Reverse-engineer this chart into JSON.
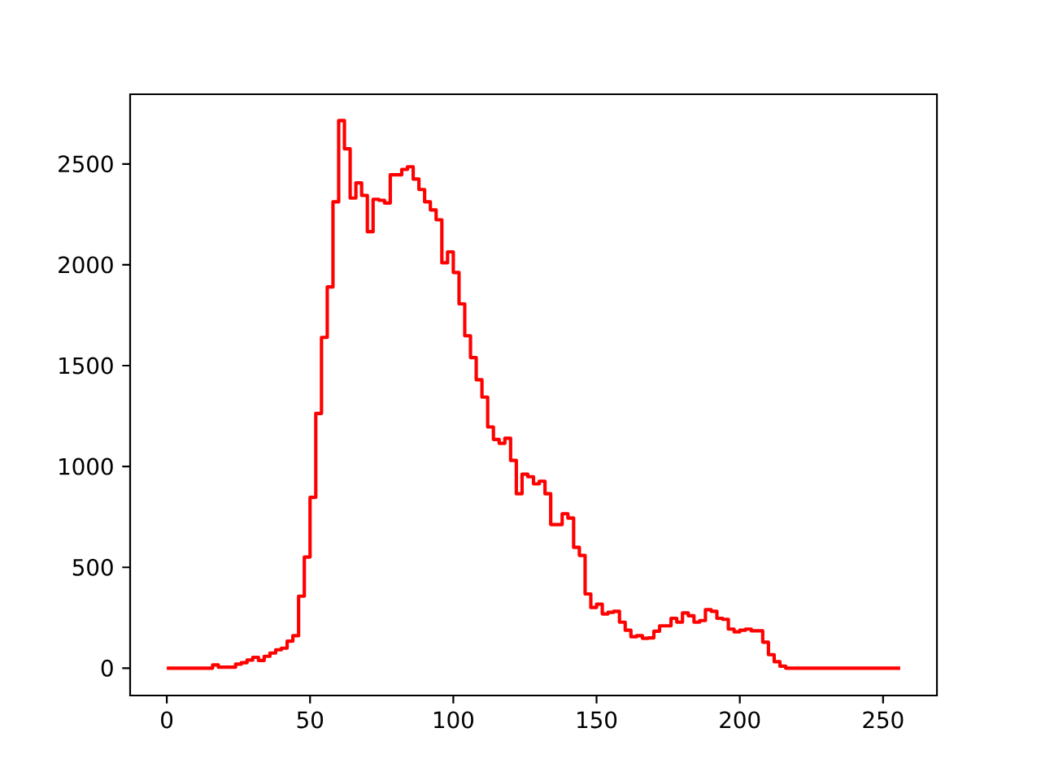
{
  "chart_data": {
    "type": "histogram",
    "color": "#ff0000",
    "bins": [
      0,
      2,
      4,
      6,
      8,
      10,
      12,
      14,
      16,
      18,
      20,
      22,
      24,
      26,
      28,
      30,
      32,
      34,
      36,
      38,
      40,
      42,
      44,
      46,
      48,
      50,
      52,
      54,
      56,
      58,
      60,
      62,
      64,
      66,
      68,
      70,
      72,
      74,
      76,
      78,
      80,
      82,
      84,
      86,
      88,
      90,
      92,
      94,
      96,
      98,
      100,
      102,
      104,
      106,
      108,
      110,
      112,
      114,
      116,
      118,
      120,
      122,
      124,
      126,
      128,
      130,
      132,
      134,
      136,
      138,
      140,
      142,
      144,
      146,
      148,
      150,
      152,
      154,
      156,
      158,
      160,
      162,
      164,
      166,
      168,
      170,
      172,
      174,
      176,
      178,
      180,
      182,
      184,
      186,
      188,
      190,
      192,
      194,
      196,
      198,
      200,
      202,
      204,
      206,
      208,
      210,
      212,
      214,
      216,
      218,
      220,
      222,
      224,
      226,
      228,
      230,
      232,
      234,
      236,
      238,
      240,
      242,
      244,
      246,
      248,
      250,
      252,
      254,
      256
    ],
    "values": [
      0,
      0,
      0,
      0,
      0,
      0,
      0,
      0,
      16,
      5,
      5,
      5,
      20,
      27,
      40,
      54,
      38,
      59,
      75,
      91,
      99,
      134,
      161,
      357,
      551,
      847,
      1263,
      1640,
      1890,
      2312,
      2715,
      2575,
      2331,
      2406,
      2344,
      2164,
      2325,
      2320,
      2306,
      2446,
      2446,
      2473,
      2486,
      2425,
      2373,
      2312,
      2272,
      2223,
      2010,
      2064,
      1962,
      1806,
      1648,
      1540,
      1430,
      1344,
      1196,
      1134,
      1115,
      1140,
      1030,
      865,
      962,
      949,
      914,
      927,
      865,
      712,
      712,
      766,
      744,
      599,
      559,
      368,
      301,
      317,
      269,
      277,
      282,
      228,
      188,
      156,
      161,
      148,
      150,
      183,
      210,
      210,
      247,
      228,
      274,
      260,
      228,
      236,
      290,
      282,
      247,
      242,
      194,
      180,
      188,
      194,
      185,
      185,
      129,
      67,
      32,
      10,
      0,
      0,
      0,
      0,
      0,
      0,
      0,
      0,
      0,
      0,
      0,
      0,
      0,
      0,
      0,
      0,
      0,
      0,
      0,
      0
    ],
    "xlim": [
      -12.8,
      268.8
    ],
    "ylim": [
      -135.5,
      2845.5
    ],
    "xticks": [
      0,
      50,
      100,
      150,
      200,
      250
    ],
    "yticks": [
      0,
      500,
      1000,
      1500,
      2000,
      2500
    ]
  }
}
